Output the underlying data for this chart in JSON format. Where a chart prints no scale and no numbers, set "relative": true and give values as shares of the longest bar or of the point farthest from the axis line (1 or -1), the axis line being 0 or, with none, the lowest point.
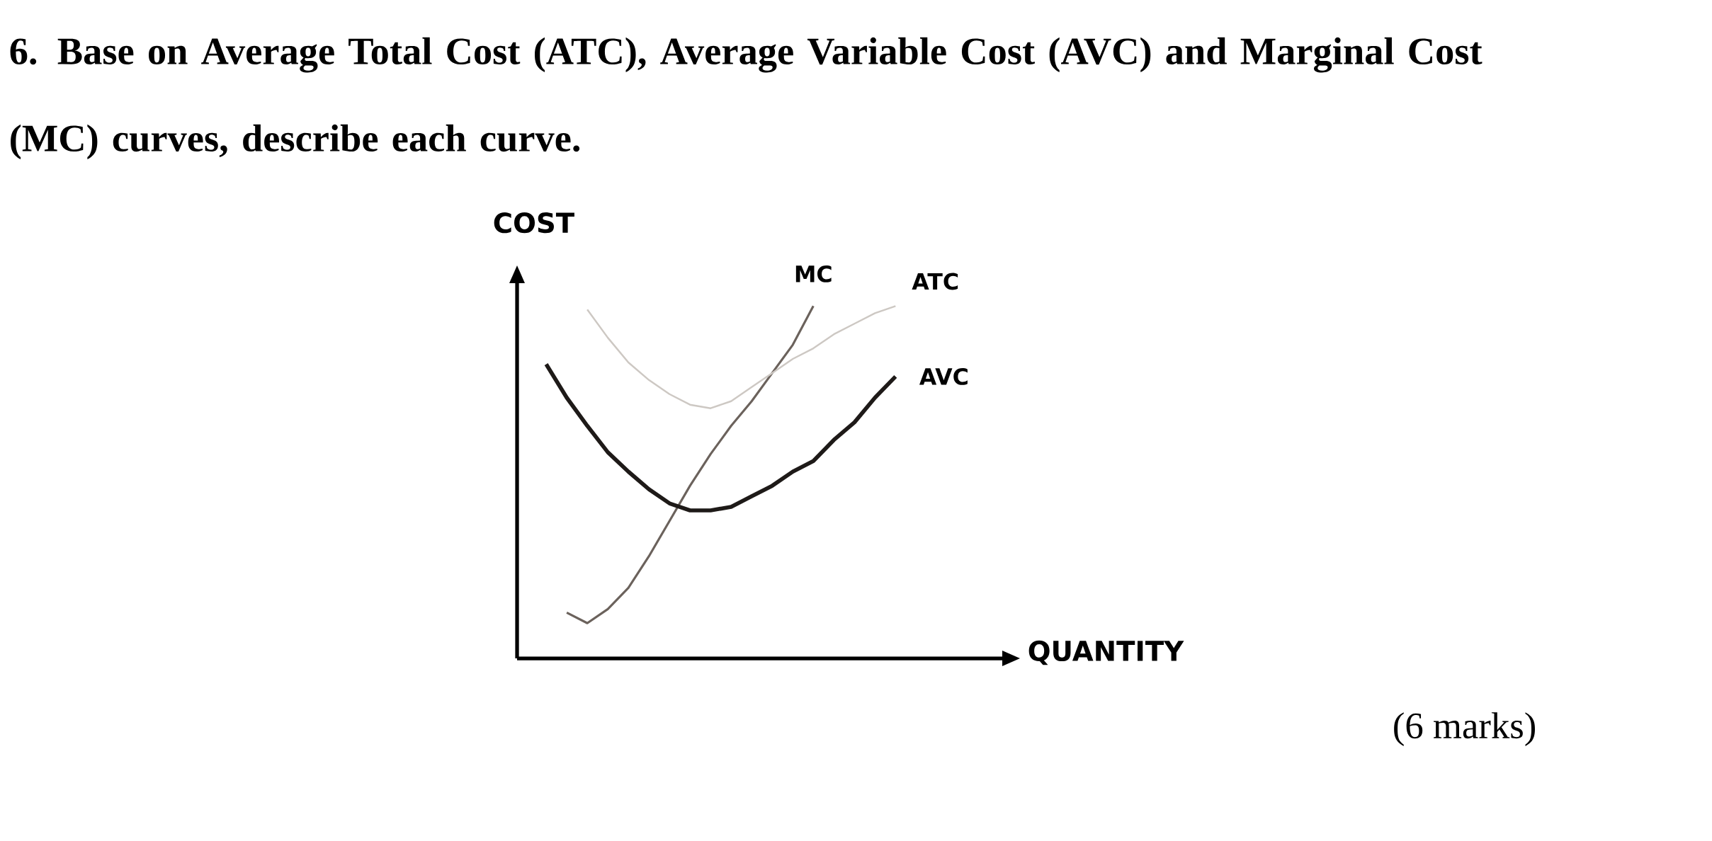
{
  "chart_data": {
    "type": "line",
    "relative": true,
    "title": "6. Base on Average Total Cost (ATC), Average Variable Cost (AVC) and Marginal Cost (MC) curves, describe each curve.",
    "xlabel": "QUANTITY",
    "ylabel": "COST",
    "annotations": [
      "(6 marks)"
    ],
    "categories": [
      null,
      null,
      null,
      null,
      null,
      null,
      null,
      null,
      null,
      null,
      null,
      null,
      null,
      null,
      null,
      null,
      null,
      null
    ],
    "series": [
      {
        "name": "MC",
        "color": "#6b625c",
        "values": [
          null,
          0.13,
          0.1,
          0.14,
          0.2,
          0.29,
          0.39,
          0.49,
          0.58,
          0.66,
          0.73,
          0.81,
          0.89,
          1.0,
          null,
          null,
          null,
          null
        ]
      },
      {
        "name": "ATC",
        "color": "#cdc8c3",
        "values": [
          null,
          null,
          0.99,
          0.91,
          0.84,
          0.79,
          0.75,
          0.72,
          0.71,
          0.73,
          0.77,
          0.81,
          0.85,
          0.88,
          0.92,
          0.95,
          0.98,
          1.0
        ]
      },
      {
        "name": "AVC",
        "color": "#1e1a18",
        "values": [
          0.835,
          0.74,
          0.66,
          0.585,
          0.53,
          0.48,
          0.44,
          0.42,
          0.42,
          0.43,
          0.46,
          0.49,
          0.53,
          0.56,
          0.62,
          0.67,
          0.74,
          0.8
        ]
      }
    ]
  }
}
